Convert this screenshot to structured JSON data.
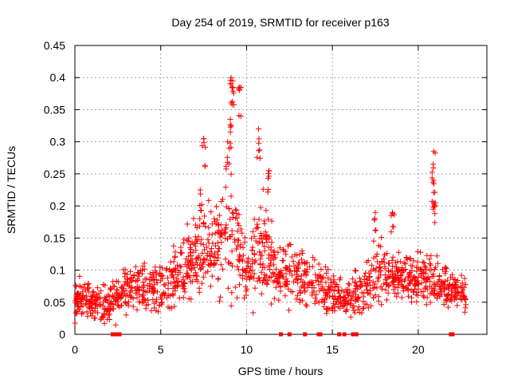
{
  "chart_data": {
    "type": "scatter",
    "title": "Day 254 of 2019, SRMTID for receiver p163",
    "xlabel": "GPS time / hours",
    "ylabel": "SRMTID / TECUs",
    "xlim": [
      0,
      24
    ],
    "ylim": [
      0,
      0.45
    ],
    "xticks": [
      0,
      5,
      10,
      15,
      20
    ],
    "xtick_labels": [
      "0",
      "5",
      "10",
      "15",
      "20"
    ],
    "yticks": [
      0,
      0.05,
      0.1,
      0.15,
      0.2,
      0.25,
      0.3,
      0.35,
      0.4,
      0.45
    ],
    "ytick_labels": [
      "0",
      "0.05",
      "0.1",
      "0.15",
      "0.2",
      "0.25",
      "0.3",
      "0.35",
      "0.4",
      "0.45"
    ],
    "grid": true,
    "marker": "+",
    "series_color": "#ff0000",
    "trend_envelope": [
      [
        0.0,
        0.055,
        0.02
      ],
      [
        1.0,
        0.05,
        0.02
      ],
      [
        2.0,
        0.045,
        0.02
      ],
      [
        3.0,
        0.07,
        0.025
      ],
      [
        4.0,
        0.07,
        0.025
      ],
      [
        5.0,
        0.07,
        0.025
      ],
      [
        6.0,
        0.09,
        0.03
      ],
      [
        7.0,
        0.12,
        0.04
      ],
      [
        8.0,
        0.14,
        0.05
      ],
      [
        8.5,
        0.15,
        0.06
      ],
      [
        9.0,
        0.16,
        0.07
      ],
      [
        9.5,
        0.13,
        0.05
      ],
      [
        10.0,
        0.09,
        0.03
      ],
      [
        10.5,
        0.12,
        0.05
      ],
      [
        11.0,
        0.13,
        0.05
      ],
      [
        12.0,
        0.1,
        0.035
      ],
      [
        13.0,
        0.09,
        0.03
      ],
      [
        14.0,
        0.08,
        0.03
      ],
      [
        15.0,
        0.06,
        0.025
      ],
      [
        16.0,
        0.055,
        0.02
      ],
      [
        17.0,
        0.075,
        0.025
      ],
      [
        18.0,
        0.1,
        0.03
      ],
      [
        19.0,
        0.09,
        0.025
      ],
      [
        20.0,
        0.085,
        0.025
      ],
      [
        21.0,
        0.08,
        0.025
      ],
      [
        22.0,
        0.07,
        0.02
      ],
      [
        22.8,
        0.06,
        0.015
      ]
    ],
    "peaks": [
      {
        "x": 9.1,
        "y": 0.4
      },
      {
        "x": 9.2,
        "y": 0.385
      },
      {
        "x": 9.6,
        "y": 0.385
      },
      {
        "x": 9.05,
        "y": 0.335
      },
      {
        "x": 10.7,
        "y": 0.32
      },
      {
        "x": 7.5,
        "y": 0.305
      },
      {
        "x": 8.9,
        "y": 0.3
      },
      {
        "x": 20.9,
        "y": 0.285
      },
      {
        "x": 20.9,
        "y": 0.24
      },
      {
        "x": 11.3,
        "y": 0.255
      },
      {
        "x": 7.3,
        "y": 0.225
      },
      {
        "x": 20.9,
        "y": 0.205
      },
      {
        "x": 17.5,
        "y": 0.19
      },
      {
        "x": 18.5,
        "y": 0.19
      }
    ],
    "zero_markers_x": [
      2.2,
      2.4,
      2.6,
      12.0,
      12.5,
      13.4,
      14.2,
      14.3,
      15.4,
      15.7,
      16.2,
      16.4,
      21.9,
      22.0
    ]
  }
}
